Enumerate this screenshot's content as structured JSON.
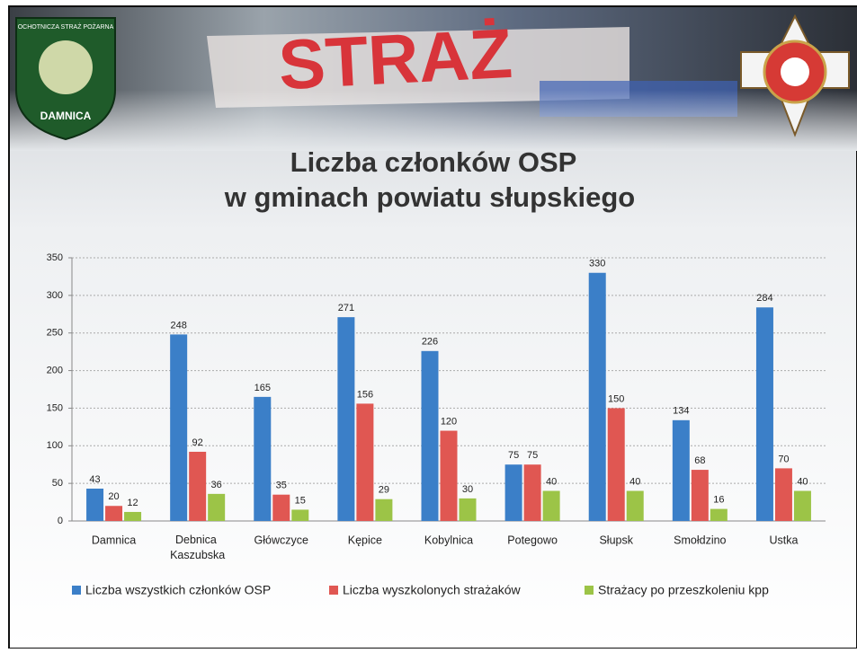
{
  "banner": {
    "photo_text": "STRAŻ",
    "logo_ring": "OCHOTNICZA STRAŻ POŻARNA",
    "logo_name": "DAMNICA"
  },
  "chart_data": {
    "type": "bar",
    "title": [
      "Liczba członków OSP",
      "w gminach powiatu słupskiego"
    ],
    "categories": [
      "Damnica",
      "Debnica Kaszubska",
      "Główczyce",
      "Kępice",
      "Kobylnica",
      "Potegowo",
      "Słupsk",
      "Smołdzino",
      "Ustka"
    ],
    "series": [
      {
        "name": "Liczba wszystkich członków OSP",
        "color": "#3b7fc8",
        "values": [
          43,
          248,
          165,
          271,
          226,
          75,
          330,
          134,
          284
        ]
      },
      {
        "name": "Liczba wyszkolonych strażaków",
        "color": "#e05752",
        "values": [
          20,
          92,
          35,
          156,
          120,
          75,
          150,
          68,
          70
        ]
      },
      {
        "name": "Strażacy po przeszkoleniu kpp",
        "color": "#9cc447",
        "values": [
          12,
          36,
          15,
          29,
          30,
          40,
          40,
          16,
          40
        ]
      }
    ],
    "ylim": [
      0,
      350
    ],
    "yticks": [
      0,
      50,
      100,
      150,
      200,
      250,
      300,
      350
    ],
    "grid": true,
    "legend": "bottom"
  }
}
